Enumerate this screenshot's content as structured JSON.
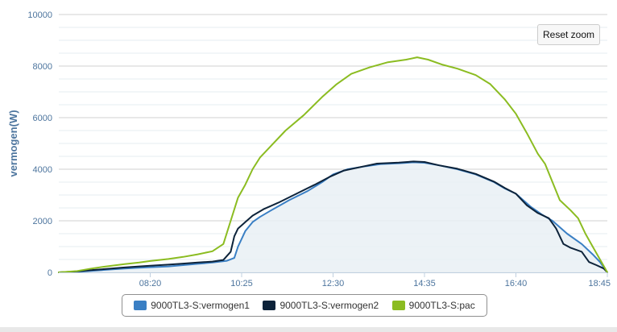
{
  "reset_zoom_label": "Reset zoom",
  "chart_data": {
    "type": "line",
    "title": "",
    "xlabel": "",
    "ylabel": "vermogen(W)",
    "ylim": [
      0,
      10000
    ],
    "y_ticks": [
      "0",
      "2000",
      "4000",
      "6000",
      "8000",
      "10000"
    ],
    "x_ticks": [
      "08:20",
      "10:25",
      "12:30",
      "14:35",
      "16:40",
      "18:45"
    ],
    "x_range": [
      "06:15",
      "18:45"
    ],
    "grid": "horizontal",
    "legend_position": "bottom",
    "series": [
      {
        "name": "9000TL3-S:vermogen1",
        "color": "#3a7fc4",
        "area": true,
        "points": [
          [
            "06:15",
            0
          ],
          [
            "06:40",
            20
          ],
          [
            "07:00",
            60
          ],
          [
            "07:20",
            100
          ],
          [
            "07:45",
            150
          ],
          [
            "08:05",
            180
          ],
          [
            "08:20",
            200
          ],
          [
            "08:45",
            230
          ],
          [
            "09:05",
            280
          ],
          [
            "09:25",
            330
          ],
          [
            "09:45",
            380
          ],
          [
            "10:05",
            450
          ],
          [
            "10:15",
            560
          ],
          [
            "10:20",
            1000
          ],
          [
            "10:25",
            1300
          ],
          [
            "10:30",
            1600
          ],
          [
            "10:40",
            1950
          ],
          [
            "10:50",
            2150
          ],
          [
            "11:05",
            2400
          ],
          [
            "11:30",
            2800
          ],
          [
            "11:55",
            3150
          ],
          [
            "12:15",
            3500
          ],
          [
            "12:30",
            3800
          ],
          [
            "12:50",
            4000
          ],
          [
            "13:15",
            4120
          ],
          [
            "13:35",
            4200
          ],
          [
            "14:00",
            4230
          ],
          [
            "14:20",
            4270
          ],
          [
            "14:35",
            4250
          ],
          [
            "14:55",
            4150
          ],
          [
            "15:20",
            4000
          ],
          [
            "15:45",
            3800
          ],
          [
            "16:10",
            3500
          ],
          [
            "16:25",
            3250
          ],
          [
            "16:40",
            3050
          ],
          [
            "17:00",
            2550
          ],
          [
            "17:15",
            2250
          ],
          [
            "17:30",
            2000
          ],
          [
            "17:50",
            1500
          ],
          [
            "18:10",
            1100
          ],
          [
            "18:25",
            700
          ],
          [
            "18:35",
            400
          ],
          [
            "18:45",
            0
          ]
        ]
      },
      {
        "name": "9000TL3-S:vermogen2",
        "color": "#0d233a",
        "area": false,
        "points": [
          [
            "06:15",
            0
          ],
          [
            "06:40",
            40
          ],
          [
            "07:00",
            90
          ],
          [
            "07:20",
            130
          ],
          [
            "07:45",
            190
          ],
          [
            "08:05",
            230
          ],
          [
            "08:20",
            260
          ],
          [
            "08:45",
            300
          ],
          [
            "09:05",
            340
          ],
          [
            "09:25",
            380
          ],
          [
            "09:45",
            420
          ],
          [
            "10:00",
            480
          ],
          [
            "10:10",
            800
          ],
          [
            "10:15",
            1400
          ],
          [
            "10:20",
            1700
          ],
          [
            "10:30",
            1950
          ],
          [
            "10:40",
            2200
          ],
          [
            "10:55",
            2450
          ],
          [
            "11:15",
            2700
          ],
          [
            "11:40",
            3050
          ],
          [
            "12:05",
            3400
          ],
          [
            "12:25",
            3700
          ],
          [
            "12:45",
            3950
          ],
          [
            "13:10",
            4100
          ],
          [
            "13:30",
            4220
          ],
          [
            "14:00",
            4260
          ],
          [
            "14:20",
            4300
          ],
          [
            "14:35",
            4280
          ],
          [
            "14:55",
            4150
          ],
          [
            "15:20",
            4020
          ],
          [
            "15:45",
            3820
          ],
          [
            "16:10",
            3520
          ],
          [
            "16:25",
            3270
          ],
          [
            "16:40",
            3050
          ],
          [
            "16:55",
            2600
          ],
          [
            "17:10",
            2300
          ],
          [
            "17:25",
            2100
          ],
          [
            "17:35",
            1700
          ],
          [
            "17:45",
            1100
          ],
          [
            "17:55",
            950
          ],
          [
            "18:10",
            800
          ],
          [
            "18:20",
            400
          ],
          [
            "18:30",
            280
          ],
          [
            "18:40",
            150
          ],
          [
            "18:45",
            0
          ]
        ]
      },
      {
        "name": "9000TL3-S:pac",
        "color": "#8bbc21",
        "area": false,
        "points": [
          [
            "06:15",
            0
          ],
          [
            "06:40",
            50
          ],
          [
            "07:00",
            150
          ],
          [
            "07:20",
            230
          ],
          [
            "07:45",
            320
          ],
          [
            "08:05",
            380
          ],
          [
            "08:20",
            440
          ],
          [
            "08:45",
            520
          ],
          [
            "09:05",
            600
          ],
          [
            "09:25",
            700
          ],
          [
            "09:45",
            820
          ],
          [
            "10:00",
            1100
          ],
          [
            "10:10",
            2000
          ],
          [
            "10:20",
            2900
          ],
          [
            "10:30",
            3400
          ],
          [
            "10:40",
            4000
          ],
          [
            "10:50",
            4450
          ],
          [
            "11:05",
            4900
          ],
          [
            "11:25",
            5500
          ],
          [
            "11:50",
            6100
          ],
          [
            "12:15",
            6800
          ],
          [
            "12:35",
            7300
          ],
          [
            "12:55",
            7700
          ],
          [
            "13:20",
            7950
          ],
          [
            "13:45",
            8150
          ],
          [
            "14:10",
            8250
          ],
          [
            "14:25",
            8340
          ],
          [
            "14:40",
            8250
          ],
          [
            "15:00",
            8050
          ],
          [
            "15:20",
            7900
          ],
          [
            "15:45",
            7650
          ],
          [
            "16:05",
            7300
          ],
          [
            "16:25",
            6700
          ],
          [
            "16:40",
            6150
          ],
          [
            "16:55",
            5400
          ],
          [
            "17:10",
            4600
          ],
          [
            "17:20",
            4200
          ],
          [
            "17:30",
            3500
          ],
          [
            "17:40",
            2800
          ],
          [
            "17:55",
            2400
          ],
          [
            "18:05",
            2100
          ],
          [
            "18:15",
            1500
          ],
          [
            "18:25",
            1000
          ],
          [
            "18:35",
            500
          ],
          [
            "18:45",
            0
          ]
        ]
      }
    ]
  }
}
